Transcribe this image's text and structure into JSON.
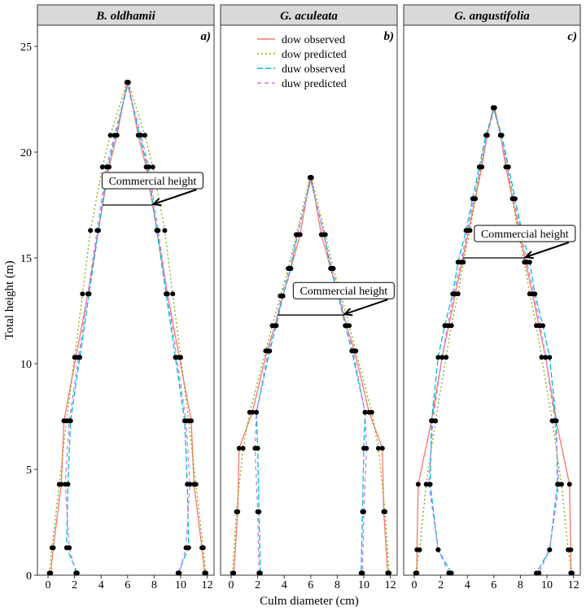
{
  "chart_data": {
    "type": "line",
    "xlabel": "Culm diameter (cm)",
    "ylabel": "Total height (m)",
    "xlim": [
      -0.5,
      12.6
    ],
    "ylim": [
      0,
      26.2
    ],
    "xticks": [
      0,
      2,
      4,
      6,
      8,
      10,
      12
    ],
    "yticks": [
      0,
      5,
      10,
      15,
      20,
      25
    ],
    "legend": {
      "placement": "top-center of panel b",
      "entries": [
        {
          "name": "dow observed",
          "color": "#f8766d",
          "dash": "solid"
        },
        {
          "name": "dow predicted",
          "color": "#7cae00",
          "dash": "dotted"
        },
        {
          "name": "duw observed",
          "color": "#00bfc4",
          "dash": "longdash"
        },
        {
          "name": "duw predicted",
          "color": "#c77cff",
          "dash": "dashed"
        }
      ]
    },
    "annotation_label": "Commercial height",
    "panels": [
      {
        "title": "B. oldhamii",
        "letter": "a)",
        "commercial_height": 17.5,
        "heights": [
          0.1,
          1.3,
          4.3,
          7.3,
          10.3,
          13.3,
          16.3,
          19.3,
          20.8,
          23.3
        ],
        "dow_observed": [
          0.2,
          0.4,
          1.0,
          1.2,
          2.1,
          3.0,
          3.8,
          4.6,
          5.2,
          5.95
        ],
        "dow_predicted": [
          0.1,
          0.3,
          0.85,
          1.4,
          2.0,
          2.6,
          3.2,
          4.1,
          4.7,
          5.95
        ],
        "duw_observed": [
          2.2,
          1.4,
          1.5,
          1.7,
          2.4,
          3.1,
          3.8,
          4.5,
          5.1,
          6.05
        ],
        "duw_predicted": [
          2.1,
          1.6,
          1.3,
          1.6,
          2.3,
          3.0,
          3.7,
          4.4,
          5.0,
          6.05
        ]
      },
      {
        "title": "G. aculeata",
        "letter": "b)",
        "commercial_height": 12.3,
        "heights": [
          0.1,
          3.0,
          6.0,
          7.7,
          10.6,
          11.8,
          13.2,
          14.5,
          16.1,
          18.8
        ],
        "dow_observed": [
          0.2,
          0.5,
          0.6,
          1.6,
          2.7,
          3.3,
          3.9,
          4.5,
          5.2,
          5.95
        ],
        "dow_predicted": [
          0.1,
          0.4,
          0.9,
          1.4,
          2.6,
          3.1,
          3.7,
          4.3,
          4.9,
          5.95
        ],
        "duw_observed": [
          2.2,
          2.1,
          2.0,
          1.9,
          2.9,
          3.4,
          3.9,
          4.5,
          5.0,
          6.05
        ],
        "duw_predicted": [
          2.1,
          2.0,
          1.8,
          1.9,
          2.8,
          3.3,
          3.8,
          4.4,
          5.0,
          6.05
        ]
      },
      {
        "title": "G. angustifolia",
        "letter": "c)",
        "commercial_height": 15.0,
        "heights": [
          0.1,
          1.2,
          4.3,
          7.3,
          10.3,
          11.8,
          13.3,
          14.8,
          16.3,
          17.8,
          19.3,
          20.8,
          22.1
        ],
        "dow_observed": [
          0.2,
          0.2,
          0.3,
          1.3,
          2.1,
          2.6,
          3.1,
          3.6,
          4.1,
          4.6,
          5.1,
          5.5,
          5.95
        ],
        "dow_predicted": [
          0.1,
          0.4,
          0.9,
          1.6,
          2.4,
          2.8,
          3.3,
          3.7,
          4.2,
          4.6,
          5.0,
          5.5,
          5.95
        ],
        "duw_observed": [
          2.8,
          1.8,
          1.2,
          1.3,
          1.8,
          2.3,
          2.9,
          3.3,
          3.9,
          4.4,
          4.9,
          5.4,
          6.05
        ],
        "duw_predicted": [
          2.6,
          1.8,
          1.1,
          1.4,
          2.1,
          2.5,
          3.0,
          3.5,
          4.0,
          4.5,
          5.0,
          5.5,
          6.05
        ]
      }
    ]
  }
}
